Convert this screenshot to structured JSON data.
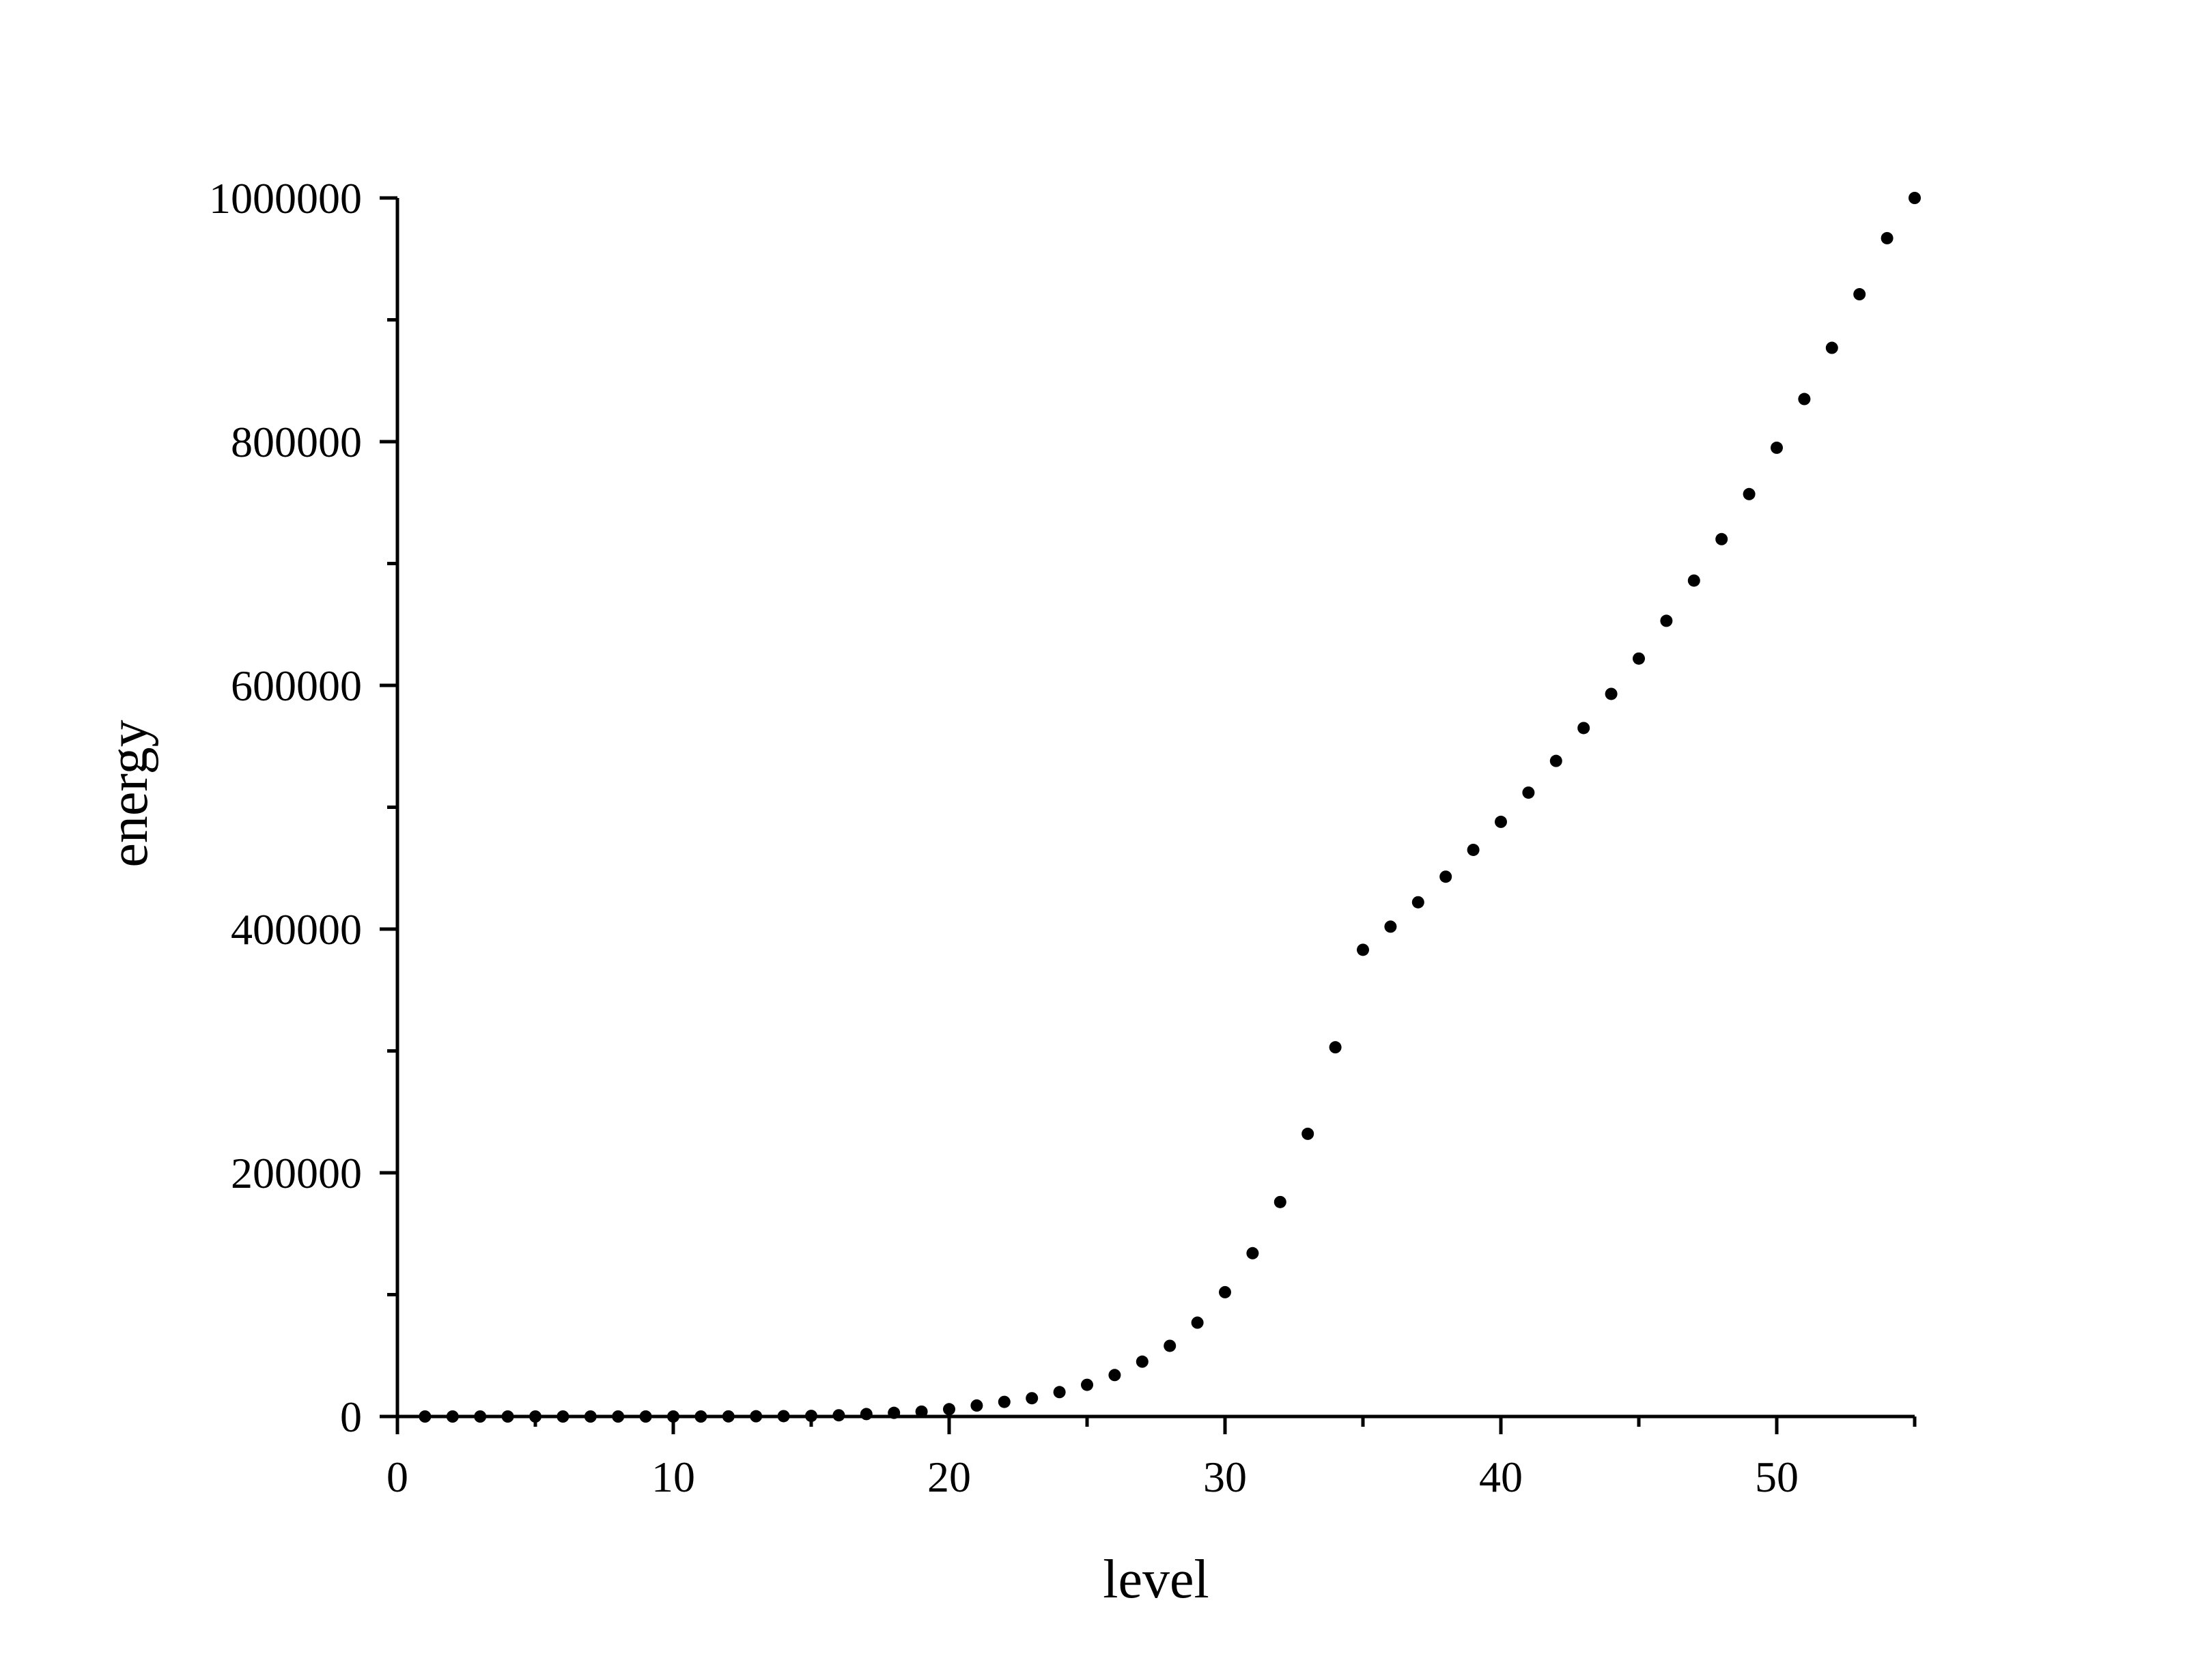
{
  "chart_data": {
    "type": "scatter",
    "title": "",
    "xlabel": "level",
    "ylabel": "energy",
    "xlim": [
      0,
      55
    ],
    "ylim": [
      0,
      1000000
    ],
    "x_ticks": [
      0,
      10,
      20,
      30,
      40,
      50
    ],
    "x_tick_labels": [
      "0",
      "10",
      "20",
      "30",
      "40",
      "50"
    ],
    "x_minor_ticks": [
      5,
      15,
      25,
      35,
      45,
      55
    ],
    "y_ticks": [
      0,
      200000,
      400000,
      600000,
      800000,
      1000000
    ],
    "y_tick_labels": [
      "0",
      "200000",
      "400000",
      "600000",
      "800000",
      "1000000"
    ],
    "y_minor_ticks": [
      100000,
      300000,
      500000,
      700000,
      900000
    ],
    "grid": false,
    "legend": "none",
    "marker_color": "#000000",
    "series": [
      {
        "x": [
          1,
          2,
          3,
          4,
          5,
          6,
          7,
          8,
          9,
          10,
          11,
          12,
          13,
          14,
          15,
          16,
          17,
          18,
          19,
          20,
          21,
          22,
          23,
          24,
          25,
          26,
          27,
          28,
          29,
          30,
          31,
          32,
          33,
          34,
          35,
          36,
          37,
          38,
          39,
          40,
          41,
          42,
          43,
          44,
          45,
          46,
          47,
          48,
          49,
          50,
          51,
          52,
          53,
          54,
          55
        ],
        "y": [
          0,
          0,
          0,
          0,
          0,
          0,
          0,
          0,
          0,
          0,
          0,
          100,
          200,
          300,
          500,
          1000,
          2000,
          3000,
          4000,
          6000,
          9000,
          12000,
          15000,
          20000,
          26000,
          34000,
          45000,
          58000,
          77000,
          102000,
          134000,
          176000,
          232000,
          303000,
          383000,
          402000,
          422000,
          443000,
          465000,
          488000,
          512000,
          538000,
          565000,
          593000,
          622000,
          653000,
          686000,
          720000,
          757000,
          795000,
          835000,
          877000,
          921000,
          967000,
          1000000
        ]
      }
    ]
  }
}
